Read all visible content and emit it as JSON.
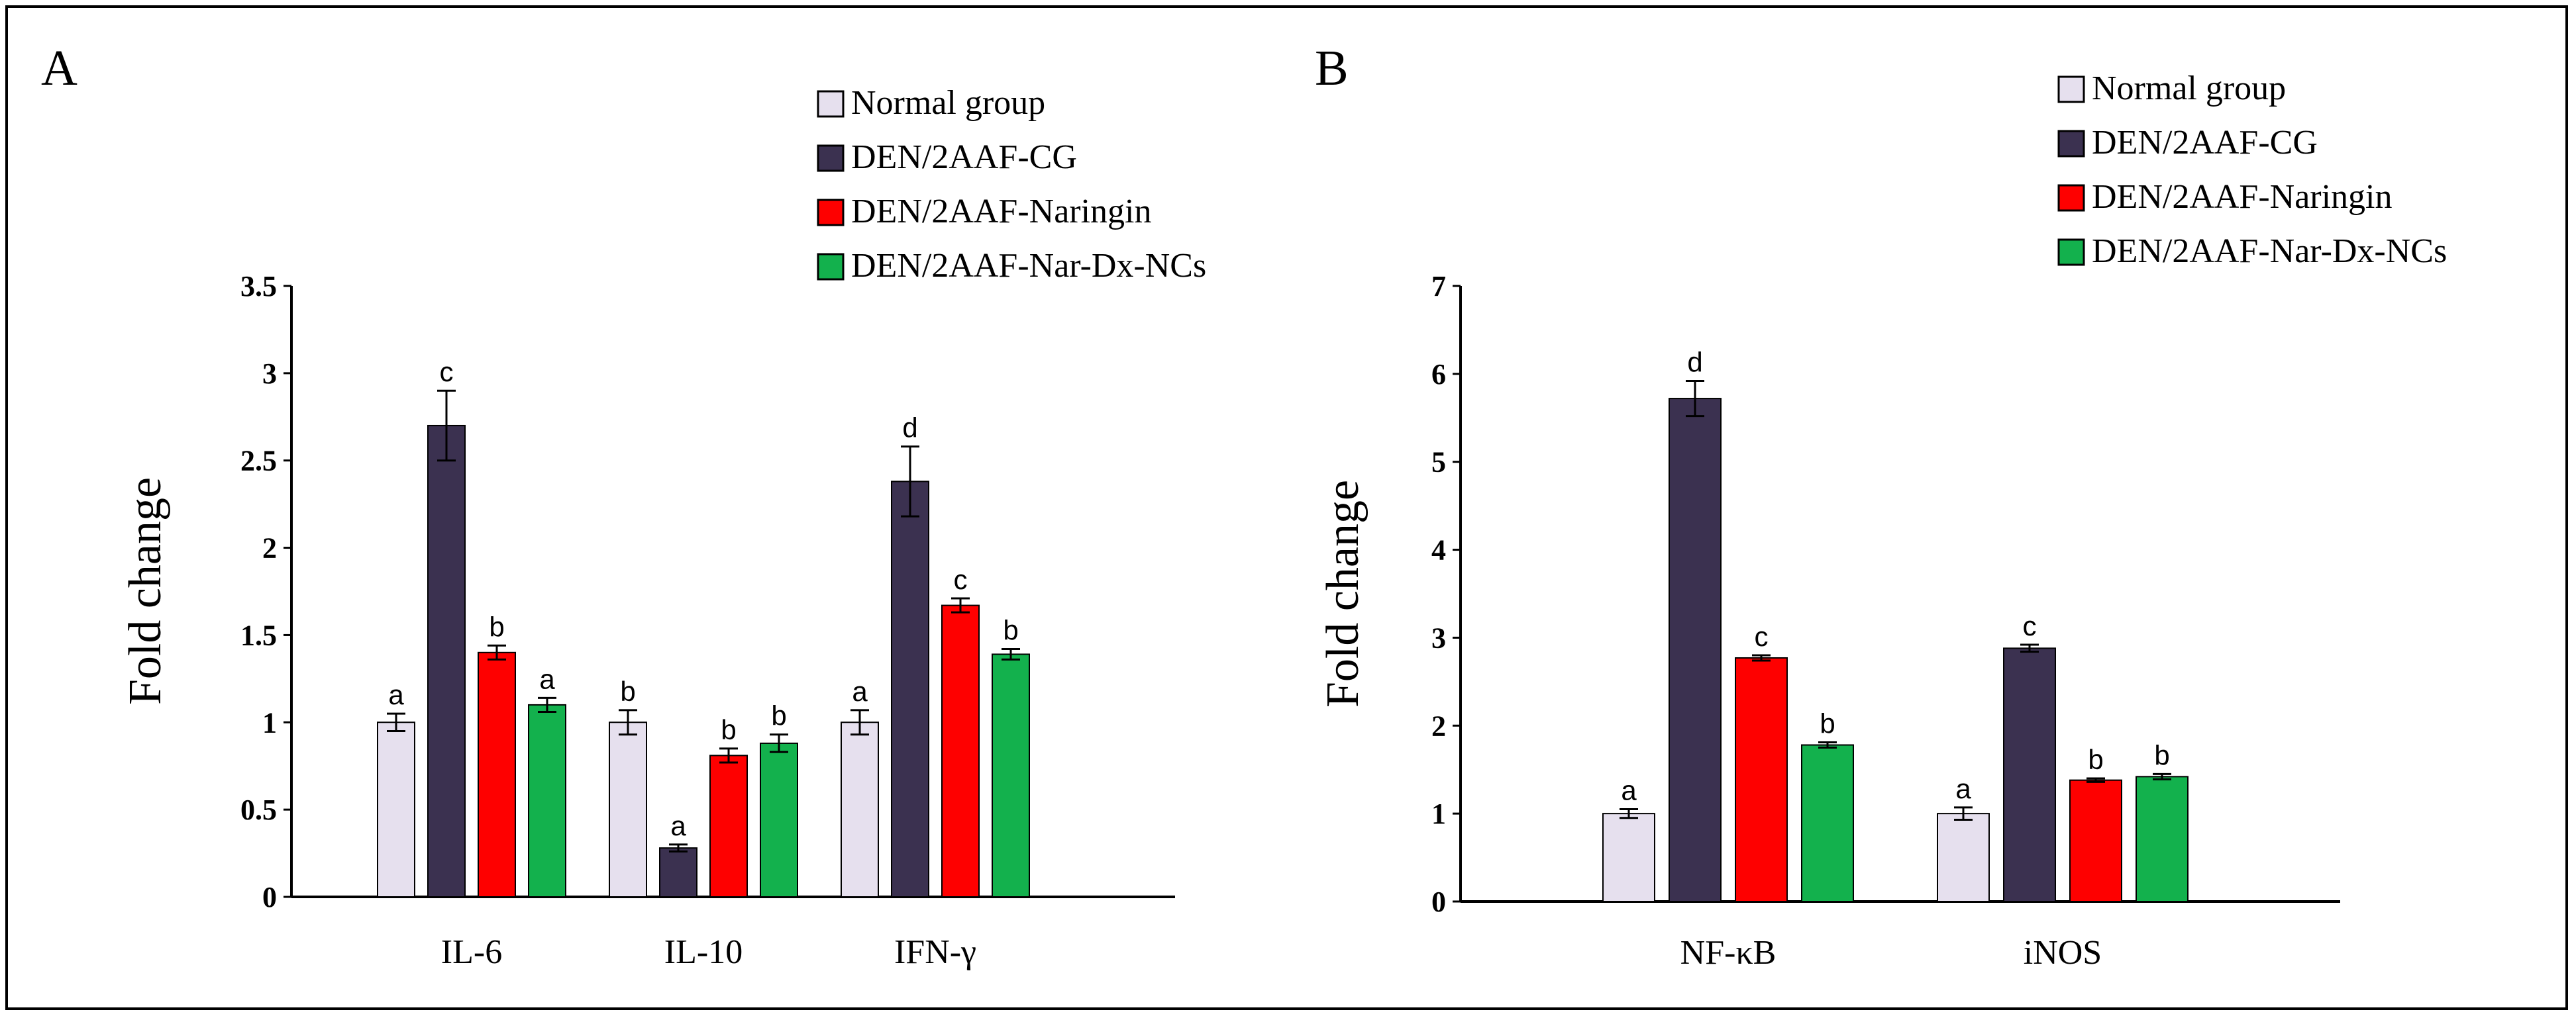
{
  "chart_data": [
    {
      "panel": "A",
      "type": "bar",
      "ylabel": "Fold change",
      "xlabel": "",
      "ylim": [
        0,
        3.5
      ],
      "yticks": [
        "0",
        "0.5",
        "1",
        "1.5",
        "2",
        "2.5",
        "3",
        "3.5"
      ],
      "categories": [
        "IL-6",
        "IL-10",
        "IFN-γ"
      ],
      "legend_position": "top-right",
      "series": [
        {
          "name": "Normal group",
          "color": "#e6e0ee",
          "values": [
            1.0,
            1.0,
            1.0
          ],
          "errors": [
            0.05,
            0.07,
            0.07
          ],
          "labels": [
            "a",
            "b",
            "a"
          ]
        },
        {
          "name": "DEN/2AAF-CG",
          "color": "#3b3150",
          "values": [
            2.7,
            0.28,
            2.38
          ],
          "errors": [
            0.2,
            0.02,
            0.2
          ],
          "labels": [
            "c",
            "a",
            "d"
          ]
        },
        {
          "name": "DEN/2AAF-Naringin",
          "color": "#fe0000",
          "values": [
            1.4,
            0.81,
            1.67
          ],
          "errors": [
            0.04,
            0.04,
            0.04
          ],
          "labels": [
            "b",
            "b",
            "c"
          ]
        },
        {
          "name": "DEN/2AAF-Nar-Dx-NCs",
          "color": "#13b14d",
          "values": [
            1.1,
            0.88,
            1.39
          ],
          "errors": [
            0.04,
            0.05,
            0.03
          ],
          "labels": [
            "a",
            "b",
            "b"
          ]
        }
      ]
    },
    {
      "panel": "B",
      "type": "bar",
      "ylabel": "Fold change",
      "xlabel": "",
      "ylim": [
        0,
        7
      ],
      "yticks": [
        "0",
        "1",
        "2",
        "3",
        "4",
        "5",
        "6",
        "7"
      ],
      "categories": [
        "NF-κB",
        "iNOS"
      ],
      "legend_position": "top-right",
      "series": [
        {
          "name": "Normal group",
          "color": "#e6e0ee",
          "values": [
            1.0,
            1.0
          ],
          "errors": [
            0.05,
            0.07
          ],
          "labels": [
            "a",
            "a"
          ]
        },
        {
          "name": "DEN/2AAF-CG",
          "color": "#3b3150",
          "values": [
            5.72,
            2.88
          ],
          "errors": [
            0.2,
            0.04
          ],
          "labels": [
            "d",
            "c"
          ]
        },
        {
          "name": "DEN/2AAF-Naringin",
          "color": "#fe0000",
          "values": [
            2.77,
            1.38
          ],
          "errors": [
            0.03,
            0.02
          ],
          "labels": [
            "c",
            "b"
          ]
        },
        {
          "name": "DEN/2AAF-Nar-Dx-NCs",
          "color": "#13b14d",
          "values": [
            1.78,
            1.42
          ],
          "errors": [
            0.03,
            0.03
          ],
          "labels": [
            "b",
            "b"
          ]
        }
      ]
    }
  ]
}
